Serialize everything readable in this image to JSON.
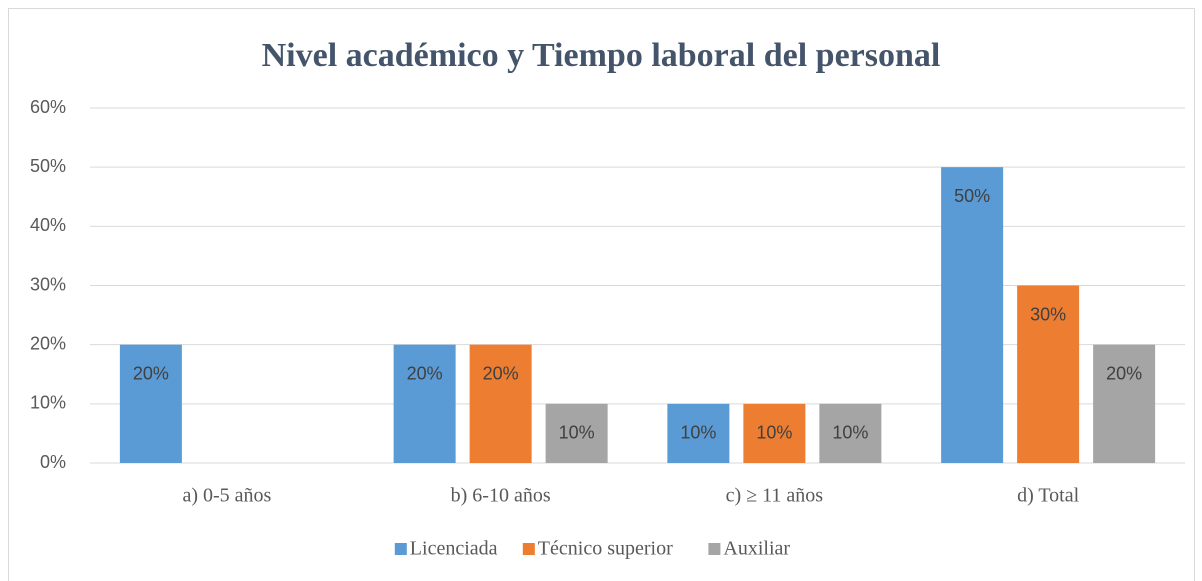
{
  "chart_data": {
    "type": "bar",
    "title": "Nivel académico y Tiempo laboral del personal",
    "categories": [
      "a) 0-5 años",
      "b) 6-10 años",
      "c) ≥ 11 años",
      "d) Total"
    ],
    "series": [
      {
        "name": "Licenciada",
        "color": "#5b9bd5",
        "values": [
          20,
          20,
          10,
          50
        ],
        "value_labels": [
          "20%",
          "20%",
          "10%",
          "50%"
        ]
      },
      {
        "name": "Técnico superior",
        "color": "#ed7d31",
        "values": [
          null,
          20,
          10,
          30
        ],
        "value_labels": [
          null,
          "20%",
          "10%",
          "30%"
        ]
      },
      {
        "name": "Auxiliar",
        "color": "#a5a5a5",
        "values": [
          null,
          10,
          10,
          20
        ],
        "value_labels": [
          null,
          "10%",
          "10%",
          "20%"
        ]
      }
    ],
    "ylim": [
      0,
      60
    ],
    "yticks": [
      {
        "value": 0,
        "label": "0%"
      },
      {
        "value": 10,
        "label": "10%"
      },
      {
        "value": 20,
        "label": "20%"
      },
      {
        "value": 30,
        "label": "30%"
      },
      {
        "value": 40,
        "label": "40%"
      },
      {
        "value": 50,
        "label": "50%"
      },
      {
        "value": 60,
        "label": "60%"
      }
    ],
    "grid": true,
    "legend": "bottom"
  }
}
